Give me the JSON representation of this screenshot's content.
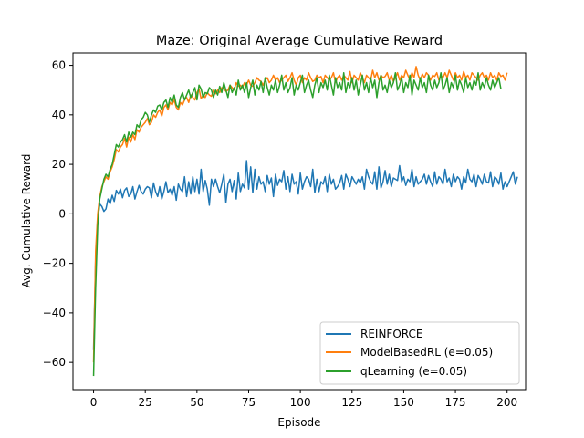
{
  "chart_data": {
    "type": "line",
    "title": "Maze: Original Average Cumulative Reward",
    "xlabel": "Episode",
    "ylabel": "Avg. Cumulative Reward",
    "xlim": [
      -9.95,
      208.95
    ],
    "ylim": [
      -71,
      65
    ],
    "xticks": [
      0,
      25,
      50,
      75,
      100,
      125,
      150,
      175,
      200
    ],
    "yticks": [
      -60,
      -40,
      -20,
      0,
      20,
      40,
      60
    ],
    "grid": false,
    "legend_position": "lower-right",
    "series": [
      {
        "name": "REINFORCE",
        "color": "#1f77b4",
        "values": [
          -55.0,
          -18.0,
          -2.0,
          4.0,
          3.0,
          1.0,
          2.0,
          6.0,
          4.0,
          7.5,
          5.0,
          9.5,
          8.0,
          10.0,
          6.5,
          9.5,
          10.5,
          7.0,
          8.0,
          11.0,
          6.0,
          9.0,
          11.5,
          9.0,
          8.0,
          10.0,
          11.0,
          10.5,
          6.5,
          12.5,
          9.0,
          7.0,
          11.0,
          6.0,
          9.0,
          13.0,
          8.5,
          10.0,
          7.5,
          11.0,
          5.5,
          12.0,
          10.0,
          9.0,
          15.0,
          7.0,
          13.0,
          8.0,
          15.0,
          9.0,
          14.0,
          8.0,
          18.0,
          9.0,
          13.5,
          10.0,
          3.5,
          14.0,
          11.0,
          14.0,
          11.0,
          8.5,
          12.0,
          16.0,
          4.5,
          12.0,
          14.0,
          9.0,
          13.5,
          6.0,
          16.5,
          9.0,
          12.0,
          10.5,
          21.5,
          10.0,
          19.0,
          8.5,
          18.0,
          10.0,
          15.0,
          12.0,
          13.0,
          9.0,
          15.5,
          12.0,
          14.5,
          7.0,
          16.0,
          11.5,
          14.0,
          13.0,
          17.5,
          10.0,
          15.0,
          9.0,
          16.0,
          12.0,
          13.0,
          8.0,
          16.5,
          10.0,
          13.0,
          15.0,
          14.0,
          11.0,
          18.0,
          8.5,
          14.0,
          9.0,
          13.0,
          12.0,
          15.0,
          9.0,
          16.0,
          12.0,
          14.0,
          10.0,
          11.0,
          12.5,
          15.5,
          10.0,
          16.0,
          14.0,
          11.0,
          15.0,
          13.5,
          12.0,
          14.0,
          12.5,
          15.0,
          10.0,
          18.0,
          15.0,
          13.0,
          12.0,
          17.0,
          10.0,
          19.0,
          10.5,
          13.0,
          17.5,
          12.0,
          16.0,
          11.0,
          14.5,
          14.0,
          13.5,
          19.5,
          13.0,
          15.0,
          11.5,
          14.0,
          13.0,
          18.0,
          11.0,
          15.0,
          12.0,
          13.0,
          14.0,
          16.0,
          12.0,
          15.5,
          13.0,
          11.0,
          17.0,
          12.0,
          15.0,
          14.0,
          12.0,
          18.0,
          13.0,
          14.5,
          11.0,
          16.0,
          13.0,
          15.0,
          14.0,
          10.0,
          15.0,
          12.5,
          18.0,
          14.0,
          13.0,
          16.0,
          11.0,
          15.5,
          14.0,
          12.0,
          16.0,
          13.0,
          12.5,
          17.0,
          11.0,
          15.0,
          14.0,
          12.0,
          16.5,
          10.0,
          13.0,
          11.0,
          13.0,
          15.0,
          17.0,
          12.0,
          15.0
        ]
      },
      {
        "name": "ModelBasedRL (e=0.05)",
        "color": "#ff7f0e",
        "values": [
          -60.0,
          -15.0,
          0.0,
          7.0,
          11.0,
          13.0,
          15.0,
          14.0,
          17.0,
          19.0,
          22.0,
          26.0,
          25.0,
          27.0,
          28.0,
          30.5,
          27.0,
          31.0,
          29.0,
          32.0,
          30.0,
          34.0,
          33.0,
          35.0,
          36.0,
          37.0,
          38.5,
          36.0,
          37.0,
          40.0,
          39.0,
          41.0,
          42.0,
          39.5,
          43.0,
          44.0,
          42.0,
          45.0,
          44.0,
          46.0,
          43.0,
          42.0,
          45.0,
          44.0,
          46.0,
          47.0,
          45.0,
          48.0,
          47.0,
          46.0,
          49.0,
          50.5,
          46.5,
          48.0,
          47.0,
          49.0,
          48.0,
          47.5,
          50.0,
          48.5,
          50.0,
          49.0,
          51.0,
          50.5,
          49.5,
          50.0,
          52.0,
          51.0,
          50.0,
          53.0,
          51.5,
          52.0,
          51.0,
          53.0,
          52.0,
          54.0,
          52.0,
          51.5,
          53.0,
          55.0,
          54.0,
          53.5,
          52.0,
          54.0,
          55.0,
          53.0,
          54.0,
          56.0,
          54.0,
          55.0,
          53.0,
          54.0,
          55.0,
          56.0,
          53.5,
          55.0,
          57.0,
          54.0,
          52.0,
          55.0,
          56.0,
          53.0,
          55.0,
          54.0,
          57.0,
          55.0,
          53.5,
          54.0,
          56.0,
          55.0,
          55.5,
          53.0,
          56.0,
          55.0,
          54.0,
          55.0,
          57.0,
          53.0,
          55.0,
          56.0,
          54.0,
          56.0,
          55.0,
          54.0,
          57.5,
          53.0,
          56.0,
          55.0,
          54.0,
          57.0,
          55.0,
          53.0,
          56.0,
          55.0,
          54.0,
          58.0,
          55.0,
          57.0,
          54.0,
          56.0,
          55.0,
          55.5,
          57.0,
          54.0,
          56.0,
          53.5,
          55.0,
          57.0,
          54.0,
          56.0,
          55.0,
          58.0,
          56.0,
          54.0,
          57.0,
          55.0,
          59.5,
          56.0,
          54.0,
          56.5,
          55.0,
          57.0,
          56.0,
          54.0,
          56.0,
          55.5,
          57.0,
          54.0,
          56.0,
          55.0,
          57.0,
          55.0,
          58.0,
          56.0,
          54.0,
          57.0,
          55.0,
          56.0,
          54.0,
          57.5,
          55.0,
          56.0,
          54.0,
          57.0,
          56.0,
          55.0,
          54.0,
          56.0,
          57.0,
          55.0,
          56.0,
          54.0,
          57.0,
          55.0,
          56.0,
          54.0,
          57.0,
          55.5,
          56.0,
          54.0,
          57.0
        ]
      },
      {
        "name": "qLearning (e=0.05)",
        "color": "#2ca02c",
        "values": [
          -65.5,
          -30.0,
          -5.0,
          6.0,
          10.0,
          14.0,
          16.0,
          15.0,
          18.0,
          20.0,
          24.0,
          28.0,
          27.0,
          29.0,
          30.0,
          32.0,
          29.0,
          33.0,
          31.0,
          33.0,
          32.0,
          36.0,
          35.0,
          38.0,
          39.0,
          41.0,
          40.0,
          37.0,
          40.0,
          42.0,
          41.0,
          43.5,
          44.0,
          42.0,
          45.0,
          46.0,
          43.0,
          47.0,
          45.0,
          48.0,
          44.0,
          43.0,
          47.0,
          49.0,
          46.0,
          48.0,
          50.0,
          47.0,
          49.0,
          51.0,
          46.0,
          52.0,
          50.5,
          47.0,
          49.0,
          48.5,
          51.0,
          50.0,
          47.0,
          50.0,
          48.0,
          51.5,
          49.0,
          53.0,
          50.0,
          47.0,
          52.0,
          49.0,
          51.0,
          48.0,
          54.0,
          50.0,
          52.0,
          49.0,
          53.0,
          47.0,
          51.0,
          54.0,
          48.0,
          52.0,
          50.0,
          53.5,
          49.0,
          55.0,
          51.0,
          48.0,
          52.0,
          50.0,
          54.0,
          49.0,
          52.0,
          56.0,
          50.0,
          53.0,
          49.0,
          51.0,
          55.0,
          48.0,
          52.0,
          50.0,
          53.0,
          56.0,
          49.0,
          52.0,
          54.0,
          50.0,
          47.0,
          52.0,
          55.0,
          49.0,
          53.0,
          51.0,
          54.0,
          50.0,
          56.0,
          52.0,
          48.0,
          55.0,
          51.0,
          53.0,
          50.0,
          57.0,
          49.0,
          53.0,
          51.0,
          55.0,
          50.0,
          54.0,
          48.0,
          52.0,
          56.0,
          50.0,
          53.0,
          49.0,
          55.0,
          51.0,
          54.0,
          47.0,
          53.0,
          56.0,
          50.0,
          52.0,
          49.0,
          54.0,
          51.0,
          53.0,
          57.0,
          50.0,
          52.0,
          55.0,
          49.0,
          53.0,
          51.0,
          56.0,
          48.0,
          54.0,
          52.0,
          50.0,
          55.0,
          51.0,
          53.0,
          49.0,
          56.0,
          52.0,
          50.0,
          54.0,
          51.0,
          53.0,
          57.0,
          50.0,
          52.0,
          55.0,
          49.0,
          53.0,
          51.0,
          56.0,
          50.0,
          54.0,
          52.0,
          49.0,
          55.0,
          51.0,
          53.0,
          50.0,
          54.0,
          52.0,
          57.0,
          50.0,
          53.0,
          51.0,
          55.0,
          52.0,
          50.0,
          54.0,
          51.0,
          53.0,
          55.0,
          50.5
        ]
      }
    ]
  }
}
